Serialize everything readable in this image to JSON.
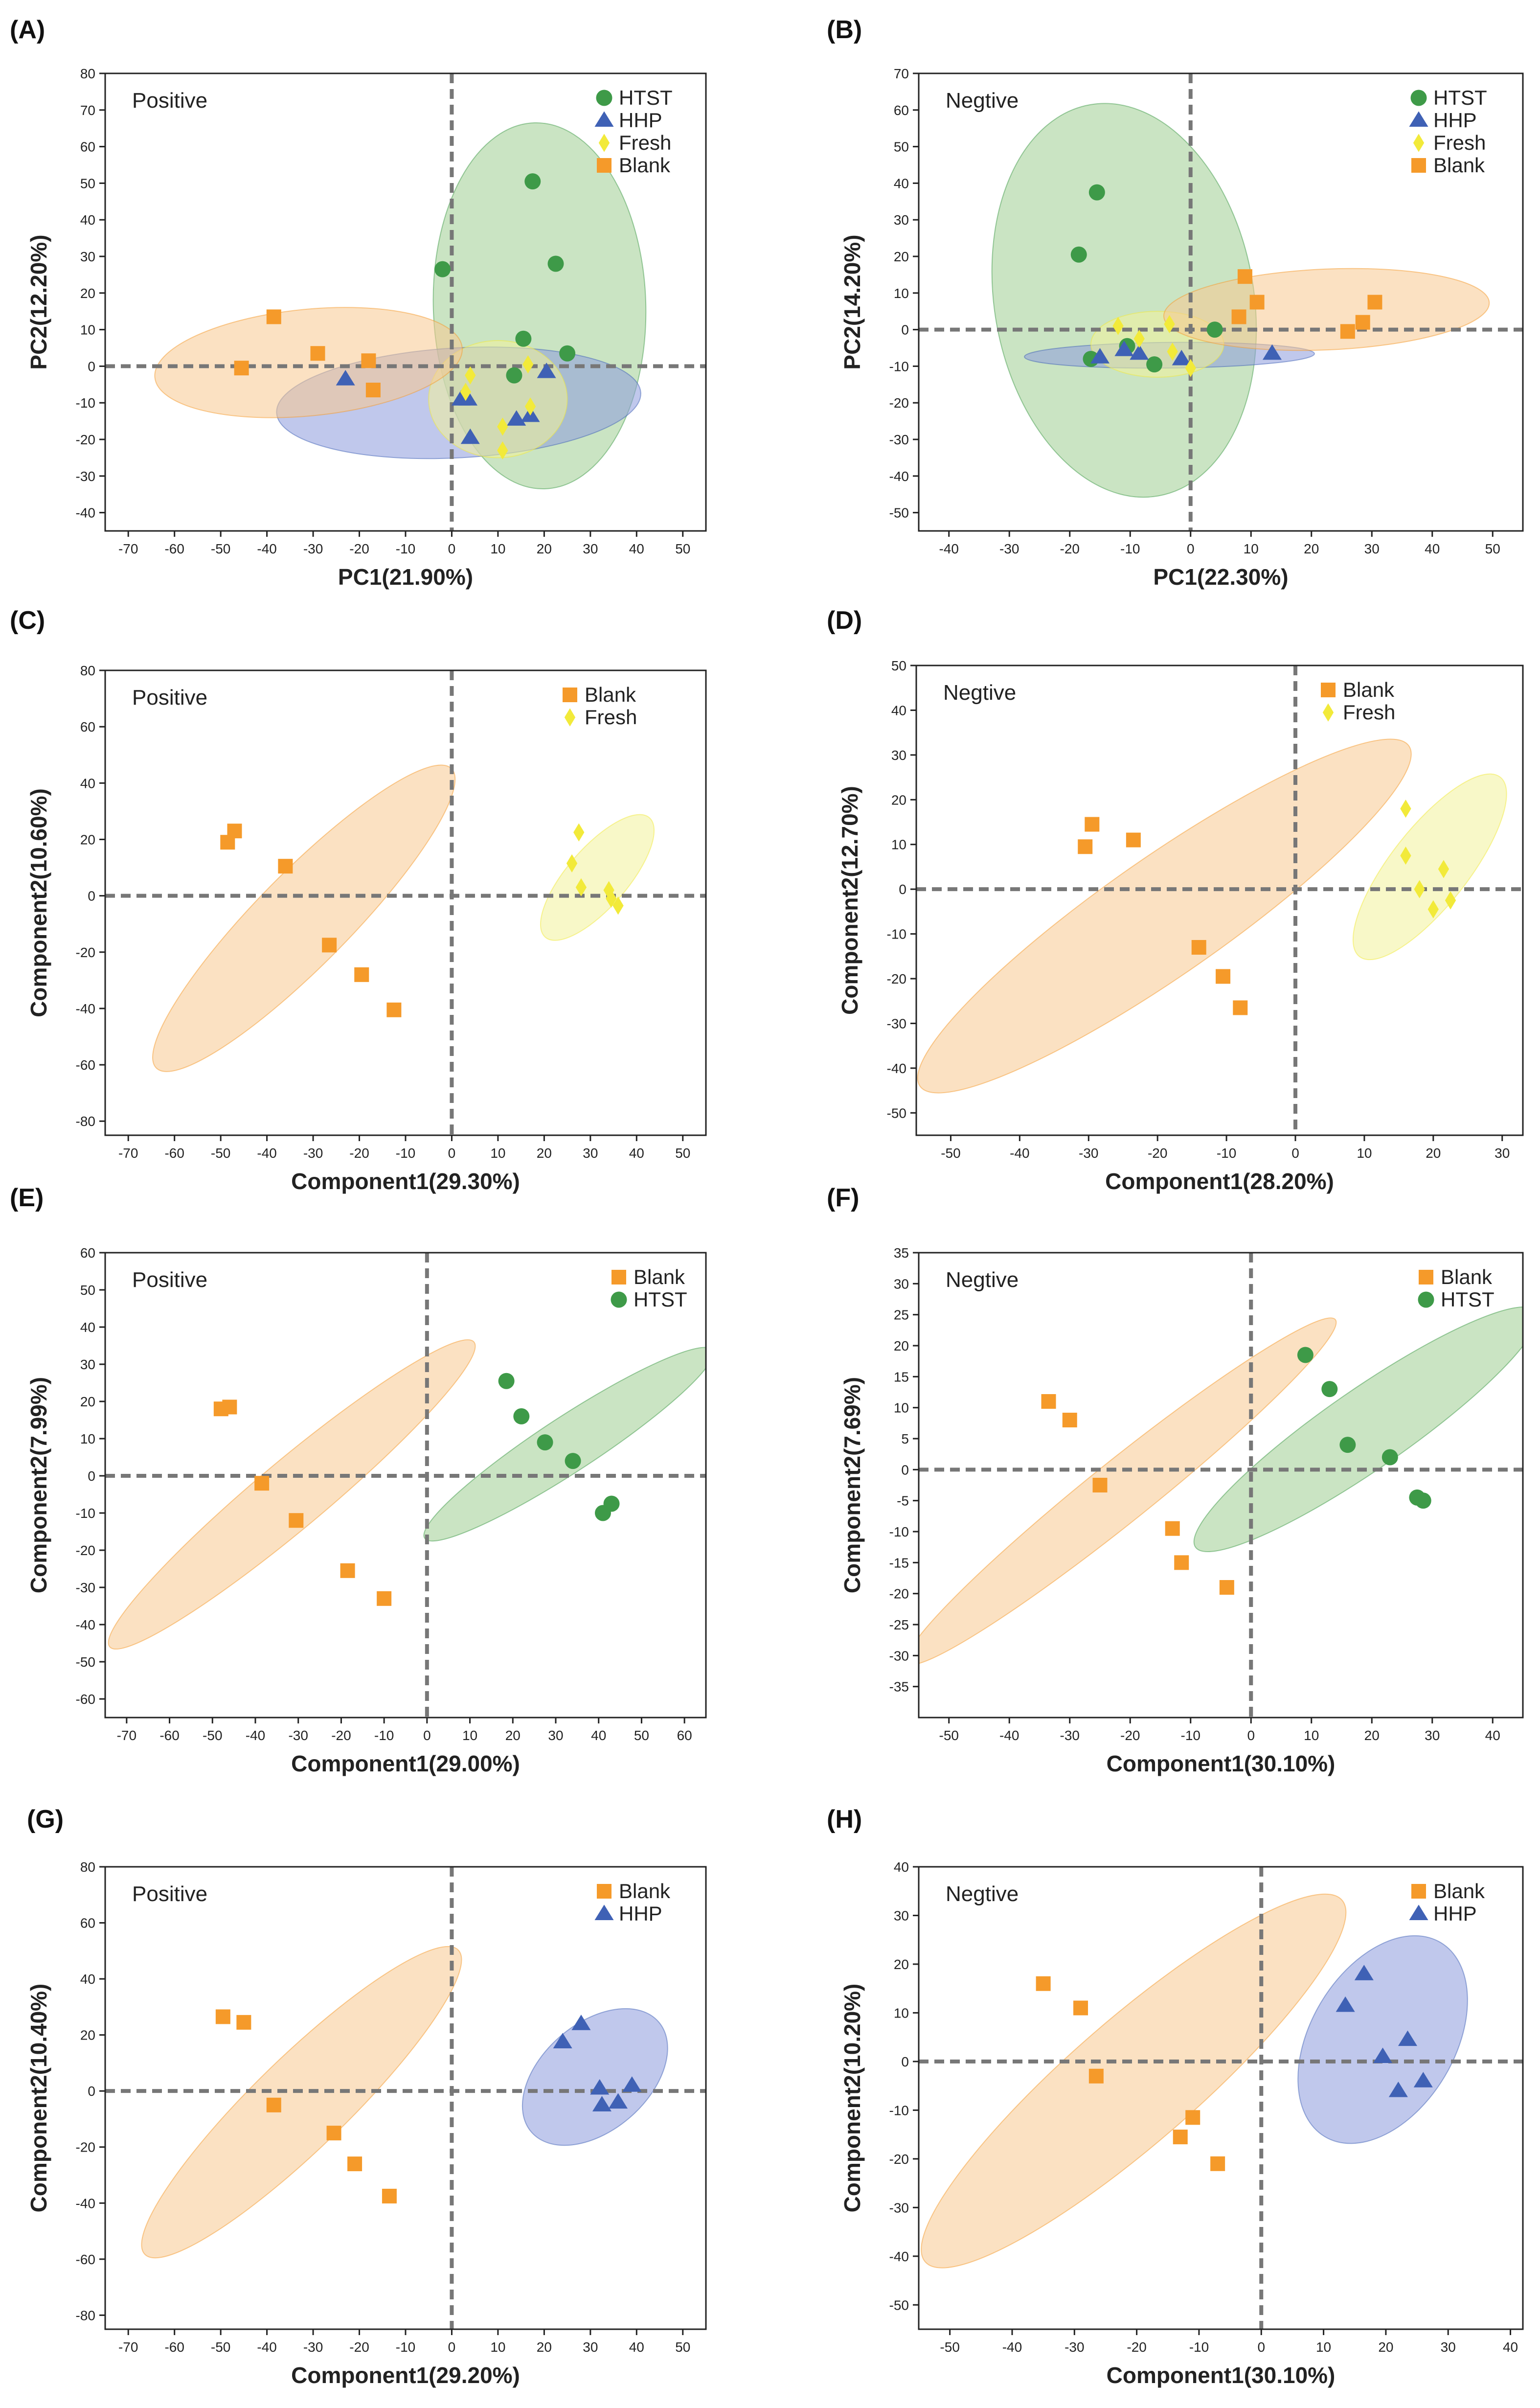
{
  "colors": {
    "HTST": "#3e9a48",
    "HHP": "#3f61b5",
    "Fresh": "#f2ea3a",
    "Blank": "#f59a2a",
    "HTST_fill": "#9fce91",
    "HHP_fill": "#8d9bdc",
    "Fresh_fill": "#f3f39a",
    "Blank_fill": "#f8c98f",
    "axis": "#222222",
    "dash": "#777777"
  },
  "chart_data": [
    {
      "panel": "(A)",
      "type": "scatter",
      "mode": "Positive",
      "xlabel": "PC1(21.90%)",
      "ylabel": "PC2(12.20%)",
      "xlim": [
        -75,
        55
      ],
      "ylim": [
        -45,
        80
      ],
      "xticks": [
        -70,
        -60,
        -50,
        -40,
        -30,
        -20,
        -10,
        0,
        10,
        20,
        30,
        40,
        50
      ],
      "yticks": [
        -40,
        -30,
        -20,
        -10,
        0,
        10,
        20,
        30,
        40,
        50,
        60,
        70,
        80
      ],
      "legend": [
        "HTST",
        "HHP",
        "Fresh",
        "Blank"
      ],
      "legend_position": "top-right",
      "series": [
        {
          "name": "HTST",
          "points": [
            [
              17.5,
              50.5
            ],
            [
              22.5,
              28
            ],
            [
              -2,
              26.5
            ],
            [
              15.5,
              7.5
            ],
            [
              25,
              3.5
            ],
            [
              13.5,
              -2.5
            ]
          ]
        },
        {
          "name": "HHP",
          "points": [
            [
              -23,
              -3.5
            ],
            [
              20.5,
              -1.5
            ],
            [
              17,
              -13.5
            ],
            [
              14,
              -14.5
            ],
            [
              4,
              -19.5
            ],
            [
              3.5,
              -9
            ],
            [
              2,
              -9
            ]
          ]
        },
        {
          "name": "Fresh",
          "points": [
            [
              4,
              -2.5
            ],
            [
              16.5,
              0.5
            ],
            [
              3,
              -7
            ],
            [
              17,
              -11
            ],
            [
              11,
              -16.5
            ],
            [
              11,
              -23
            ]
          ]
        },
        {
          "name": "Blank",
          "points": [
            [
              -38.5,
              13.5
            ],
            [
              -29,
              3.5
            ],
            [
              -18,
              1.5
            ],
            [
              -45.5,
              -0.5
            ],
            [
              -17,
              -6.5
            ]
          ]
        }
      ],
      "ellipses": [
        {
          "name": "HTST",
          "cx": 19,
          "cy": 16.5,
          "rx": 23,
          "ry": 50,
          "angle": -2
        },
        {
          "name": "HHP",
          "cx": 1.5,
          "cy": -10,
          "rx": 39.5,
          "ry": 15,
          "angle": -4
        },
        {
          "name": "Fresh",
          "cx": 10,
          "cy": -9,
          "rx": 15,
          "ry": 16,
          "angle": 0
        },
        {
          "name": "Blank",
          "cx": -31,
          "cy": 1,
          "rx": 33.5,
          "ry": 14.5,
          "angle": -7
        }
      ]
    },
    {
      "panel": "(B)",
      "type": "scatter",
      "mode": "Negtive",
      "xlabel": "PC1(22.30%)",
      "ylabel": "PC2(14.20%)",
      "xlim": [
        -45,
        55
      ],
      "ylim": [
        -55,
        70
      ],
      "xticks": [
        -40,
        -30,
        -20,
        -10,
        0,
        10,
        20,
        30,
        40,
        50
      ],
      "yticks": [
        -50,
        -40,
        -30,
        -20,
        -10,
        0,
        10,
        20,
        30,
        40,
        50,
        60,
        70
      ],
      "legend": [
        "HTST",
        "HHP",
        "Fresh",
        "Blank"
      ],
      "legend_position": "top-right",
      "series": [
        {
          "name": "HTST",
          "points": [
            [
              -15.5,
              37.5
            ],
            [
              -18.5,
              20.5
            ],
            [
              4,
              0
            ],
            [
              -16.5,
              -8
            ],
            [
              -10.5,
              -4.5
            ],
            [
              -6,
              -9.5
            ]
          ]
        },
        {
          "name": "HHP",
          "points": [
            [
              -15,
              -7.5
            ],
            [
              -11,
              -5.5
            ],
            [
              -8.5,
              -6.5
            ],
            [
              -1.5,
              -8
            ],
            [
              13.5,
              -6.5
            ]
          ]
        },
        {
          "name": "Fresh",
          "points": [
            [
              -12,
              1
            ],
            [
              -3.5,
              1.5
            ],
            [
              -8.5,
              -2.5
            ],
            [
              -3,
              -6
            ],
            [
              0,
              -10.5
            ]
          ]
        },
        {
          "name": "Blank",
          "points": [
            [
              9,
              14.5
            ],
            [
              11,
              7.5
            ],
            [
              8,
              3.5
            ],
            [
              30.5,
              7.5
            ],
            [
              28.5,
              2
            ],
            [
              26,
              -0.5
            ]
          ]
        }
      ],
      "ellipses": [
        {
          "name": "HTST",
          "cx": -11,
          "cy": 8,
          "rx": 22,
          "ry": 51,
          "angle": -16
        },
        {
          "name": "HHP",
          "cx": -3.5,
          "cy": -7,
          "rx": 24,
          "ry": 3.5,
          "angle": -1
        },
        {
          "name": "Fresh",
          "cx": -5.5,
          "cy": -4,
          "rx": 11,
          "ry": 9,
          "angle": 0
        },
        {
          "name": "Blank",
          "cx": 22.5,
          "cy": 5.5,
          "rx": 27,
          "ry": 11,
          "angle": -4
        }
      ]
    },
    {
      "panel": "(C)",
      "type": "scatter",
      "mode": "Positive",
      "xlabel": "Component1(29.30%)",
      "ylabel": "Component2(10.60%)",
      "xlim": [
        -75,
        55
      ],
      "ylim": [
        -85,
        80
      ],
      "xticks": [
        -70,
        -60,
        -50,
        -40,
        -30,
        -20,
        -10,
        0,
        10,
        20,
        30,
        40,
        50
      ],
      "yticks": [
        -80,
        -60,
        -40,
        -20,
        0,
        20,
        40,
        60,
        80
      ],
      "legend": [
        "Blank",
        "Fresh"
      ],
      "legend_position": "top-right",
      "series": [
        {
          "name": "Blank",
          "points": [
            [
              -47,
              23
            ],
            [
              -48.5,
              19
            ],
            [
              -36,
              10.5
            ],
            [
              -26.5,
              -17.5
            ],
            [
              -19.5,
              -28
            ],
            [
              -12.5,
              -40.5
            ]
          ]
        },
        {
          "name": "Fresh",
          "points": [
            [
              27.5,
              22.5
            ],
            [
              26,
              11.5
            ],
            [
              28,
              3
            ],
            [
              34,
              2
            ],
            [
              34.5,
              -1
            ],
            [
              36,
              -3.5
            ]
          ]
        }
      ],
      "ellipses": [
        {
          "name": "Blank",
          "cx": -32,
          "cy": -8,
          "rx": 62,
          "ry": 11,
          "angle": -59
        },
        {
          "name": "Fresh",
          "cx": 31.5,
          "cy": 6.5,
          "rx": 24,
          "ry": 7,
          "angle": -62
        }
      ]
    },
    {
      "panel": "(D)",
      "type": "scatter",
      "mode": "Negtive",
      "xlabel": "Component1(28.20%)",
      "ylabel": "Component2(12.70%)",
      "xlim": [
        -55,
        33
      ],
      "ylim": [
        -55,
        50
      ],
      "xticks": [
        -50,
        -40,
        -30,
        -20,
        -10,
        0,
        10,
        20,
        30
      ],
      "yticks": [
        -50,
        -40,
        -30,
        -20,
        -10,
        0,
        10,
        20,
        30,
        40,
        50
      ],
      "legend": [
        "Blank",
        "Fresh"
      ],
      "legend_position": "top-right",
      "series": [
        {
          "name": "Blank",
          "points": [
            [
              -29.5,
              14.5
            ],
            [
              -30.5,
              9.5
            ],
            [
              -23.5,
              11
            ],
            [
              -14,
              -13
            ],
            [
              -10.5,
              -19.5
            ],
            [
              -8,
              -26.5
            ]
          ]
        },
        {
          "name": "Fresh",
          "points": [
            [
              16,
              18
            ],
            [
              16,
              7.5
            ],
            [
              18,
              0
            ],
            [
              21.5,
              4.5
            ],
            [
              22.5,
              -2.5
            ],
            [
              20,
              -4.5
            ]
          ]
        }
      ],
      "ellipses": [
        {
          "name": "Blank",
          "cx": -19,
          "cy": -6,
          "rx": 52,
          "ry": 10,
          "angle": -47
        },
        {
          "name": "Fresh",
          "cx": 19.5,
          "cy": 5,
          "rx": 22.5,
          "ry": 6,
          "angle": -63
        }
      ]
    },
    {
      "panel": "(E)",
      "type": "scatter",
      "mode": "Positive",
      "xlabel": "Component1(29.00%)",
      "ylabel": "Component2(7.99%)",
      "xlim": [
        -75,
        65
      ],
      "ylim": [
        -65,
        60
      ],
      "xticks": [
        -70,
        -60,
        -50,
        -40,
        -30,
        -20,
        -10,
        0,
        10,
        20,
        30,
        40,
        50,
        60
      ],
      "yticks": [
        -60,
        -50,
        -40,
        -30,
        -20,
        -10,
        0,
        10,
        20,
        30,
        40,
        50,
        60
      ],
      "legend": [
        "Blank",
        "HTST"
      ],
      "legend_position": "top-right",
      "series": [
        {
          "name": "Blank",
          "points": [
            [
              -48,
              18
            ],
            [
              -46,
              18.5
            ],
            [
              -38.5,
              -2
            ],
            [
              -30.5,
              -12
            ],
            [
              -18.5,
              -25.5
            ],
            [
              -10,
              -33
            ]
          ]
        },
        {
          "name": "HTST",
          "points": [
            [
              18.5,
              25.5
            ],
            [
              22,
              16
            ],
            [
              27.5,
              9
            ],
            [
              34,
              4
            ],
            [
              43,
              -7.5
            ],
            [
              41,
              -10
            ]
          ]
        }
      ],
      "ellipses": [
        {
          "name": "Blank",
          "cx": -31.5,
          "cy": -5,
          "rx": 59,
          "ry": 8.5,
          "angle": -44
        },
        {
          "name": "HTST",
          "cx": 33,
          "cy": 8.5,
          "rx": 42,
          "ry": 7,
          "angle": -37
        }
      ]
    },
    {
      "panel": "(F)",
      "type": "scatter",
      "mode": "Negtive",
      "xlabel": "Component1(30.10%)",
      "ylabel": "Component2(7.69%)",
      "xlim": [
        -55,
        45
      ],
      "ylim": [
        -40,
        35
      ],
      "xticks": [
        -50,
        -40,
        -30,
        -20,
        -10,
        0,
        10,
        20,
        30,
        40
      ],
      "yticks": [
        -35,
        -30,
        -25,
        -20,
        -15,
        -10,
        -5,
        0,
        5,
        10,
        15,
        20,
        25,
        30,
        35
      ],
      "legend": [
        "Blank",
        "HTST"
      ],
      "legend_position": "top-right",
      "series": [
        {
          "name": "Blank",
          "points": [
            [
              -33.5,
              11
            ],
            [
              -30,
              8
            ],
            [
              -25,
              -2.5
            ],
            [
              -13,
              -9.5
            ],
            [
              -11.5,
              -15
            ],
            [
              -4,
              -19
            ]
          ]
        },
        {
          "name": "HTST",
          "points": [
            [
              9,
              18.5
            ],
            [
              13,
              13
            ],
            [
              16,
              4
            ],
            [
              23,
              2
            ],
            [
              27.5,
              -4.5
            ],
            [
              28.5,
              -5
            ]
          ]
        }
      ],
      "ellipses": [
        {
          "name": "Blank",
          "cx": -21.5,
          "cy": -3.5,
          "rx": 45,
          "ry": 5,
          "angle": -38
        },
        {
          "name": "HTST",
          "cx": 19,
          "cy": 6.5,
          "rx": 34,
          "ry": 6.5,
          "angle": -34
        }
      ]
    },
    {
      "panel": "(G)",
      "type": "scatter",
      "mode": "Positive",
      "xlabel": "Component1(29.20%)",
      "ylabel": "Component2(10.40%)",
      "xlim": [
        -75,
        55
      ],
      "ylim": [
        -85,
        80
      ],
      "xticks": [
        -70,
        -60,
        -50,
        -40,
        -30,
        -20,
        -10,
        0,
        10,
        20,
        30,
        40,
        50
      ],
      "yticks": [
        -80,
        -60,
        -40,
        -20,
        0,
        20,
        40,
        60,
        80
      ],
      "legend": [
        "Blank",
        "HHP"
      ],
      "legend_position": "top-right",
      "series": [
        {
          "name": "Blank",
          "points": [
            [
              -49.5,
              26.5
            ],
            [
              -45,
              24.5
            ],
            [
              -38.5,
              -5
            ],
            [
              -25.5,
              -15
            ],
            [
              -21,
              -26
            ],
            [
              -13.5,
              -37.5
            ]
          ]
        },
        {
          "name": "HHP",
          "points": [
            [
              24,
              17.5
            ],
            [
              28,
              24
            ],
            [
              32,
              1
            ],
            [
              32.5,
              -5
            ],
            [
              36,
              -4
            ],
            [
              39,
              2
            ]
          ]
        }
      ],
      "ellipses": [
        {
          "name": "Blank",
          "cx": -32.5,
          "cy": -4,
          "rx": 64,
          "ry": 11,
          "angle": -58
        },
        {
          "name": "HHP",
          "cx": 31,
          "cy": 5,
          "rx": 24,
          "ry": 13,
          "angle": -55
        }
      ]
    },
    {
      "panel": "(H)",
      "type": "scatter",
      "mode": "Negtive",
      "xlabel": "Component1(30.10%)",
      "ylabel": "Component2(10.20%)",
      "xlim": [
        -55,
        42
      ],
      "ylim": [
        -55,
        40
      ],
      "xticks": [
        -50,
        -40,
        -30,
        -20,
        -10,
        0,
        10,
        20,
        30,
        40
      ],
      "yticks": [
        -50,
        -40,
        -30,
        -20,
        -10,
        0,
        10,
        20,
        30,
        40
      ],
      "legend": [
        "Blank",
        "HHP"
      ],
      "legend_position": "top-right",
      "series": [
        {
          "name": "Blank",
          "points": [
            [
              -35,
              16
            ],
            [
              -29,
              11
            ],
            [
              -26.5,
              -3
            ],
            [
              -11,
              -11.5
            ],
            [
              -13,
              -15.5
            ],
            [
              -7,
              -21
            ]
          ]
        },
        {
          "name": "HHP",
          "points": [
            [
              16.5,
              18
            ],
            [
              13.5,
              11.5
            ],
            [
              19.5,
              1
            ],
            [
              23.5,
              4.5
            ],
            [
              26,
              -4
            ],
            [
              22,
              -6
            ]
          ]
        }
      ],
      "ellipses": [
        {
          "name": "Blank",
          "cx": -20.5,
          "cy": -4,
          "rx": 50,
          "ry": 11,
          "angle": -48
        },
        {
          "name": "HHP",
          "cx": 19.5,
          "cy": 4.5,
          "rx": 22,
          "ry": 12,
          "angle": -65
        }
      ]
    }
  ]
}
